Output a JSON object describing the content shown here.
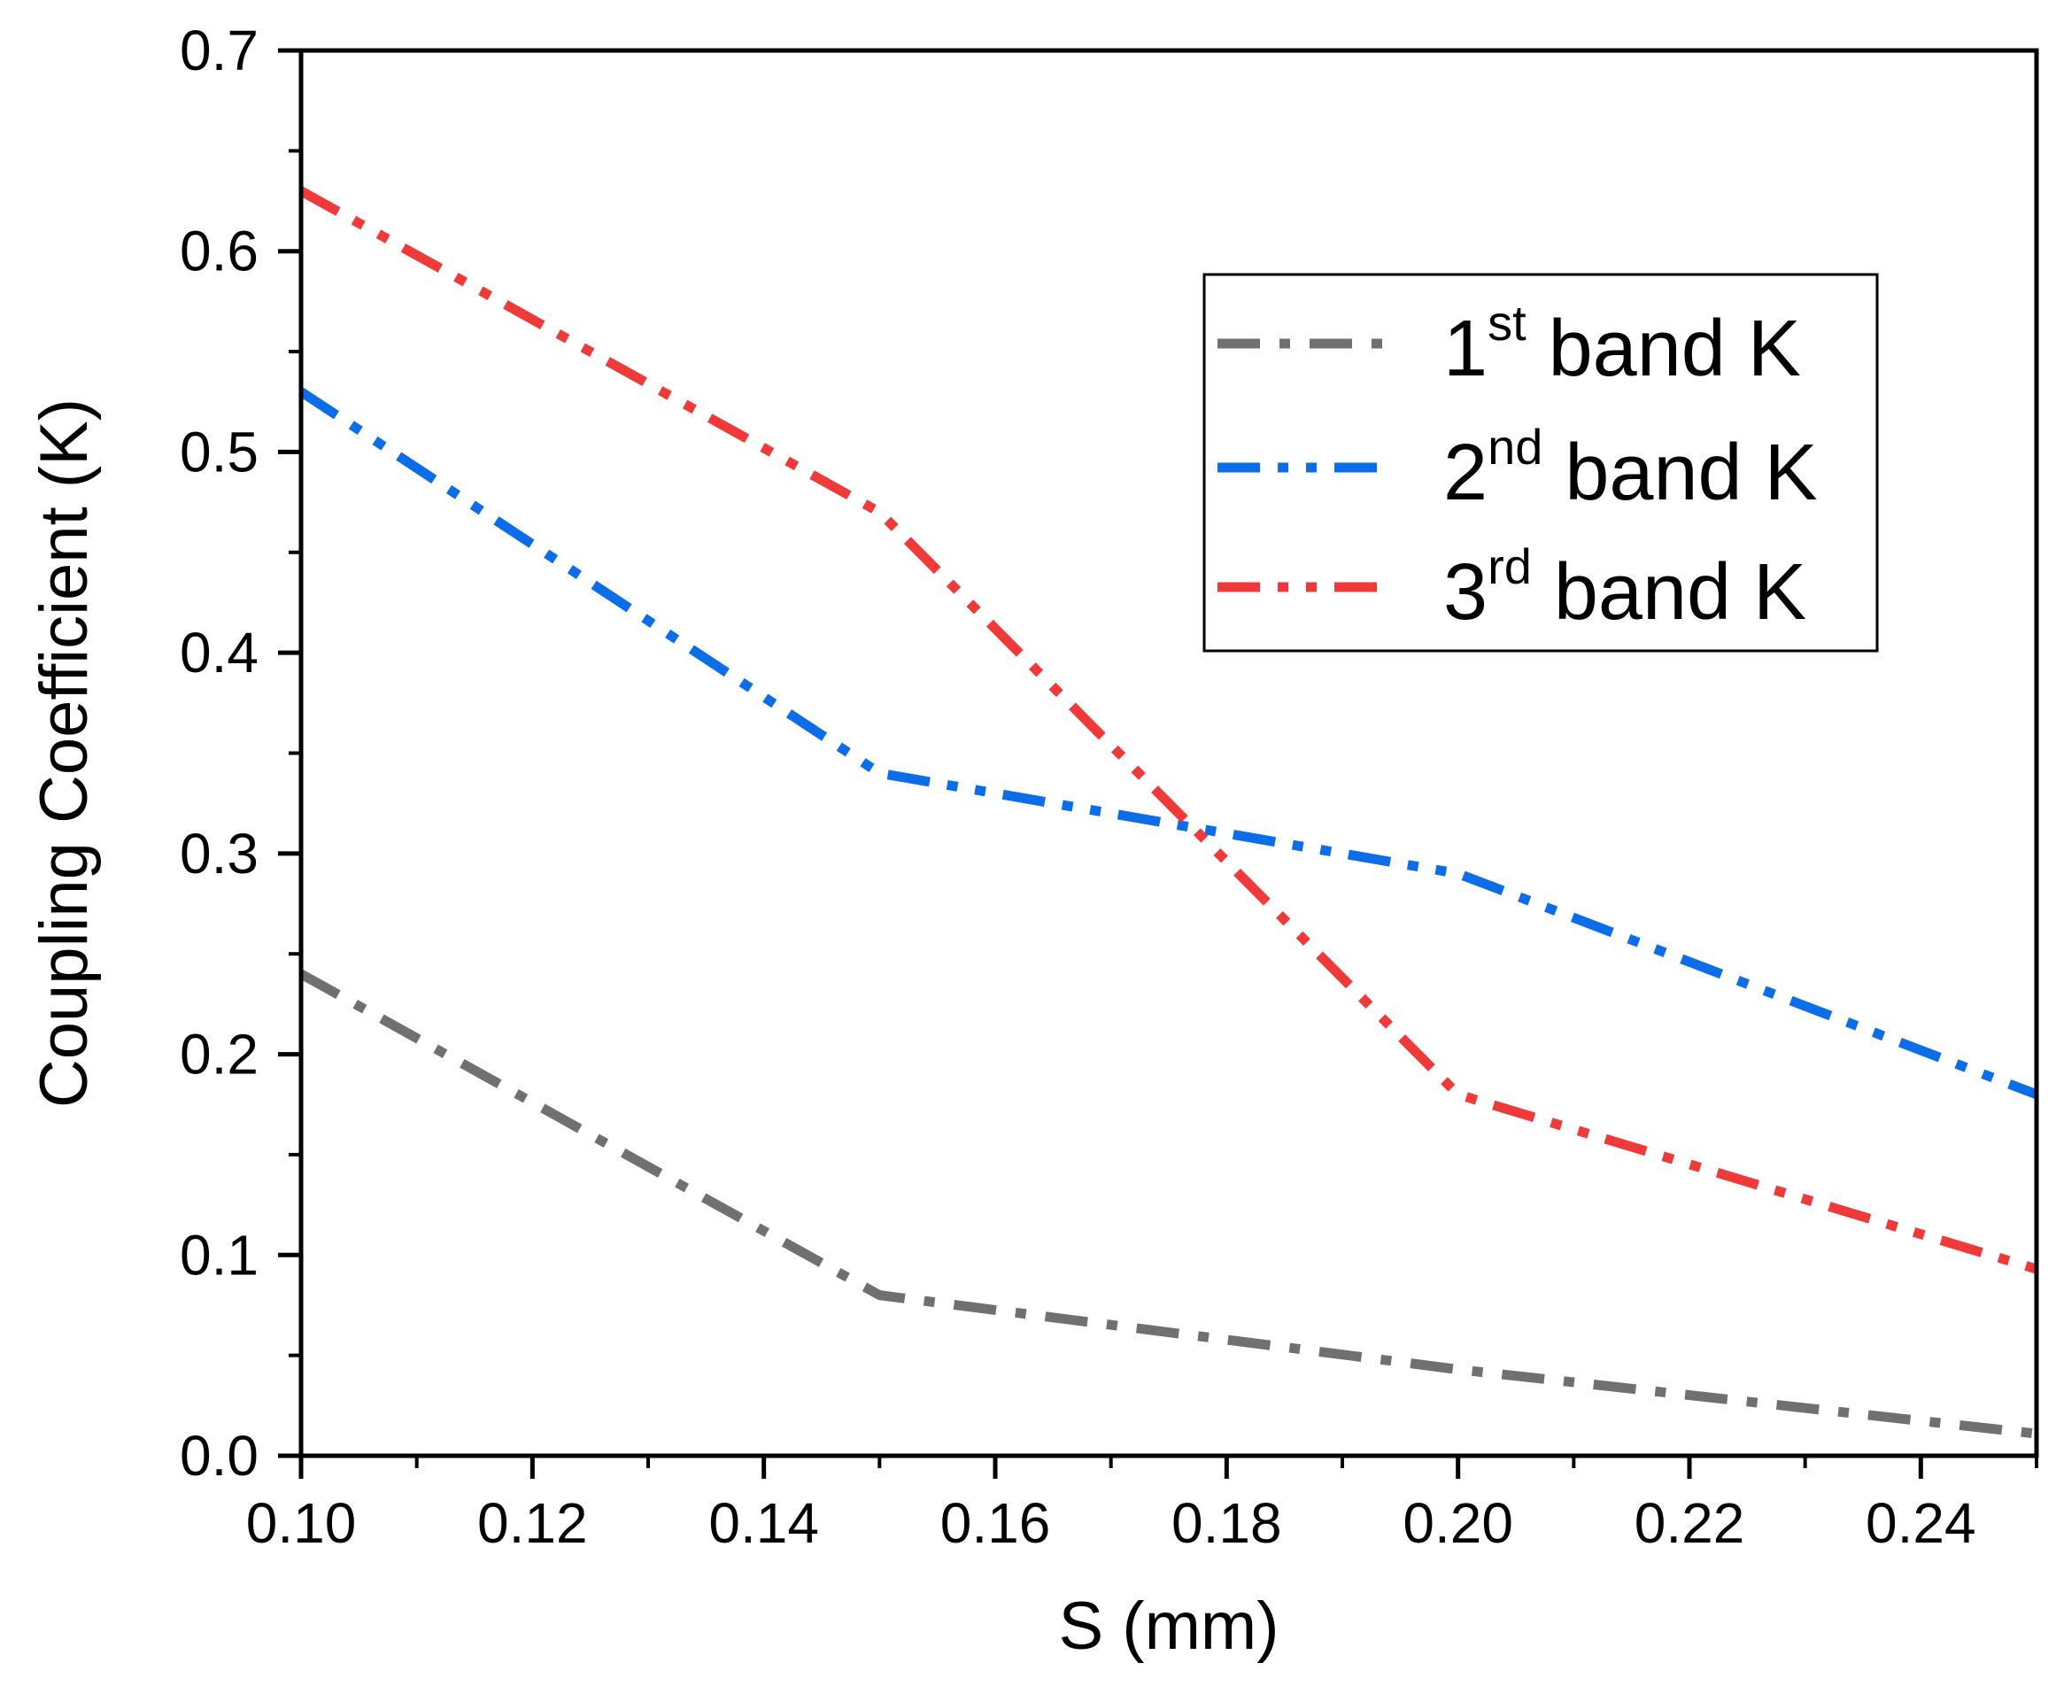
{
  "chart_data": {
    "type": "line",
    "title": "",
    "xlabel": "S (mm)",
    "ylabel": "Coupling Coefficient (K)",
    "xlim": [
      0.1,
      0.25
    ],
    "ylim": [
      0.0,
      0.7
    ],
    "x_major_ticks": [
      0.1,
      0.12,
      0.14,
      0.16,
      0.18,
      0.2,
      0.22,
      0.24
    ],
    "x_tick_labels": [
      "0.10",
      "0.12",
      "0.14",
      "0.16",
      "0.18",
      "0.20",
      "0.22",
      "0.24"
    ],
    "x_minor_ticks": [
      0.11,
      0.13,
      0.15,
      0.17,
      0.19,
      0.21,
      0.23,
      0.25
    ],
    "y_major_ticks": [
      0.0,
      0.1,
      0.2,
      0.3,
      0.4,
      0.5,
      0.6,
      0.7
    ],
    "y_tick_labels": [
      "0.0",
      "0.1",
      "0.2",
      "0.3",
      "0.4",
      "0.5",
      "0.6",
      "0.7"
    ],
    "y_minor_ticks": [
      0.05,
      0.15,
      0.25,
      0.35,
      0.45,
      0.55,
      0.65
    ],
    "grid": false,
    "legend_position": "top-right",
    "x": [
      0.1,
      0.15,
      0.2,
      0.25
    ],
    "series": [
      {
        "name": "1st band K",
        "legend_main": "1",
        "legend_sup": "st",
        "legend_rest": " band K",
        "color": "#707070",
        "dash": "dash-dot",
        "values": [
          0.24,
          0.08,
          0.043,
          0.011
        ]
      },
      {
        "name": "2nd band K",
        "legend_main": "2",
        "legend_sup": "nd",
        "legend_rest": " band K",
        "color": "#0b6ee8",
        "dash": "dash-dot-dot",
        "values": [
          0.53,
          0.34,
          0.29,
          0.18
        ]
      },
      {
        "name": "3rd band K",
        "legend_main": "3",
        "legend_sup": "rd",
        "legend_rest": " band K",
        "color": "#f03a3a",
        "dash": "dash-dot-dot",
        "values": [
          0.63,
          0.47,
          0.18,
          0.093
        ]
      }
    ]
  }
}
